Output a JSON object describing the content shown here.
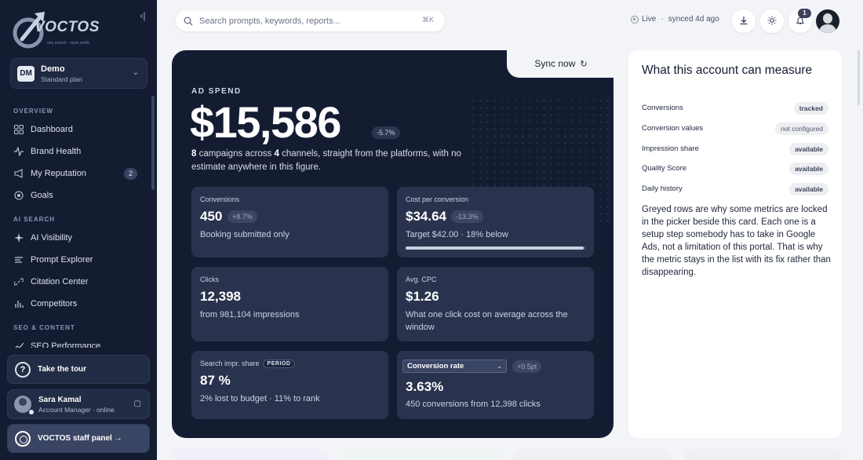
{
  "brand": {
    "name": "VOCTOS",
    "tagline": "one search · more worth"
  },
  "account": {
    "initials": "DM",
    "name": "Demo",
    "plan": "Standard plan"
  },
  "nav": {
    "overview_label": "OVERVIEW",
    "ai_search_label": "AI SEARCH",
    "seo_label": "SEO & CONTENT",
    "items": [
      {
        "label": "Dashboard"
      },
      {
        "label": "Brand Health"
      },
      {
        "label": "My Reputation",
        "count": "2"
      },
      {
        "label": "Goals"
      },
      {
        "label": "AI Visibility"
      },
      {
        "label": "Prompt Explorer"
      },
      {
        "label": "Citation Center"
      },
      {
        "label": "Competitors"
      },
      {
        "label": "SEO Performance"
      }
    ]
  },
  "tour": {
    "label": "Take the tour"
  },
  "user": {
    "name": "Sara Kamal",
    "role": "Account Manager · online"
  },
  "staff": {
    "label": "VOCTOS staff panel →"
  },
  "search": {
    "placeholder": "Search prompts, keywords, reports...",
    "shortcut": "⌘K"
  },
  "status": {
    "live": "Live",
    "sync": "synced 4d ago"
  },
  "notifications": {
    "count": "1"
  },
  "hero": {
    "sync_label": "Sync now",
    "label": "AD SPEND",
    "value": "$15,586",
    "delta": "-5.7%",
    "campaigns": "8",
    "channels": "4",
    "desc_1": "campaigns across",
    "desc_2": "channels, straight from the platforms, with no estimate anywhere in this figure.",
    "metrics": {
      "conversions": {
        "title": "Conversions",
        "value": "450",
        "delta": "+8.7%",
        "desc": "Booking submitted only"
      },
      "cpc_conv": {
        "title": "Cost per conversion",
        "value": "$34.64",
        "delta": "-13.3%",
        "desc": "Target $42.00 · 18% below",
        "progress": 0.99
      },
      "clicks": {
        "title": "Clicks",
        "value": "12,398",
        "desc": "from 981,104 impressions"
      },
      "avg_cpc": {
        "title": "Avg. CPC",
        "value": "$1.26",
        "desc": "What one click cost on average across the window"
      },
      "impr_share": {
        "title": "Search impr. share",
        "badge": "PERIOD",
        "value": "87 %",
        "desc": "2% lost to budget · 11% to rank"
      },
      "conv_rate": {
        "select": "Conversion rate",
        "delta": "+0.5pt",
        "value": "3.63%",
        "desc": "450 conversions from 12,398 clicks"
      }
    }
  },
  "panel": {
    "title": "What this account can measure",
    "rows": [
      {
        "key": "Conversions",
        "status": "tracked"
      },
      {
        "key": "Conversion values",
        "status": "not configured"
      },
      {
        "key": "Impression share",
        "status": "available"
      },
      {
        "key": "Quality Score",
        "status": "available"
      },
      {
        "key": "Daily history",
        "status": "available"
      }
    ],
    "note": "Greyed rows are why some metrics are locked in the picker beside this card. Each one is a setup step somebody has to take in Google Ads, not a limitation of this portal. That is why the metric stays in the list with its fix rather than disappearing."
  }
}
